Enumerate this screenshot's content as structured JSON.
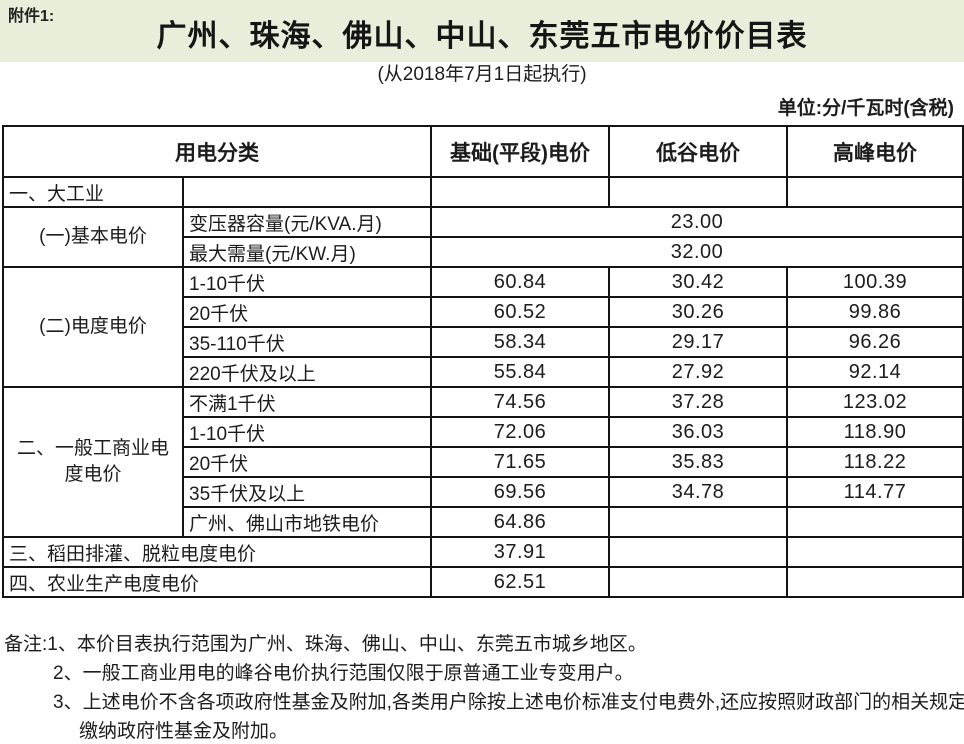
{
  "page": {
    "attachment_label": "附件1:",
    "title": "广州、珠海、佛山、中山、东莞五市电价价目表",
    "subtitle": "(从2018年7月1日起执行)",
    "unit_note": "单位:分/千瓦时(含税)",
    "accent_color": "#e8eeda",
    "border_color": "#141414"
  },
  "table": {
    "columns": [
      "用电分类",
      "基础(平段)电价",
      "低谷电价",
      "高峰电价"
    ],
    "rows": [
      {
        "header": true,
        "cells": [
          {
            "t": "用电分类",
            "c": 2
          },
          {
            "t": "基础(平段)电价"
          },
          {
            "t": "低谷电价"
          },
          {
            "t": "高峰电价"
          }
        ]
      },
      {
        "cells": [
          {
            "t": "一、大工业",
            "cls": "left"
          },
          {
            "t": ""
          },
          {
            "t": ""
          },
          {
            "t": ""
          },
          {
            "t": ""
          }
        ]
      },
      {
        "cells": [
          {
            "t": "(一)基本电价",
            "r": 2,
            "cls": "cat"
          },
          {
            "t": "变压器容量(元/KVA.月)",
            "cls": "left"
          },
          {
            "t": "23.00",
            "c": 3,
            "cls": "num"
          }
        ]
      },
      {
        "cells": [
          {
            "t": "最大需量(元/KW.月)",
            "cls": "left"
          },
          {
            "t": "32.00",
            "c": 3,
            "cls": "num"
          }
        ]
      },
      {
        "cells": [
          {
            "t": "(二)电度电价",
            "r": 4,
            "cls": "cat"
          },
          {
            "t": "1-10千伏",
            "cls": "left"
          },
          {
            "t": "60.84",
            "cls": "num"
          },
          {
            "t": "30.42",
            "cls": "num"
          },
          {
            "t": "100.39",
            "cls": "num"
          }
        ]
      },
      {
        "cells": [
          {
            "t": "20千伏",
            "cls": "left"
          },
          {
            "t": "60.52",
            "cls": "num"
          },
          {
            "t": "30.26",
            "cls": "num"
          },
          {
            "t": "99.86",
            "cls": "num"
          }
        ]
      },
      {
        "cells": [
          {
            "t": "35-110千伏",
            "cls": "left"
          },
          {
            "t": "58.34",
            "cls": "num"
          },
          {
            "t": "29.17",
            "cls": "num"
          },
          {
            "t": "96.26",
            "cls": "num"
          }
        ]
      },
      {
        "cells": [
          {
            "t": "220千伏及以上",
            "cls": "left"
          },
          {
            "t": "55.84",
            "cls": "num"
          },
          {
            "t": "27.92",
            "cls": "num"
          },
          {
            "t": "92.14",
            "cls": "num"
          }
        ]
      },
      {
        "cells": [
          {
            "t": "二、一般工商业电\n度电价",
            "r": 5,
            "cls": "cat"
          },
          {
            "t": "不满1千伏",
            "cls": "left"
          },
          {
            "t": "74.56",
            "cls": "num"
          },
          {
            "t": "37.28",
            "cls": "num"
          },
          {
            "t": "123.02",
            "cls": "num"
          }
        ]
      },
      {
        "cells": [
          {
            "t": "1-10千伏",
            "cls": "left"
          },
          {
            "t": "72.06",
            "cls": "num"
          },
          {
            "t": "36.03",
            "cls": "num"
          },
          {
            "t": "118.90",
            "cls": "num"
          }
        ]
      },
      {
        "cells": [
          {
            "t": "20千伏",
            "cls": "left"
          },
          {
            "t": "71.65",
            "cls": "num"
          },
          {
            "t": "35.83",
            "cls": "num"
          },
          {
            "t": "118.22",
            "cls": "num"
          }
        ]
      },
      {
        "cells": [
          {
            "t": "35千伏及以上",
            "cls": "left"
          },
          {
            "t": "69.56",
            "cls": "num"
          },
          {
            "t": "34.78",
            "cls": "num"
          },
          {
            "t": "114.77",
            "cls": "num"
          }
        ]
      },
      {
        "cells": [
          {
            "t": "广州、佛山市地铁电价",
            "cls": "left"
          },
          {
            "t": "64.86",
            "cls": "num"
          },
          {
            "t": ""
          },
          {
            "t": ""
          }
        ]
      },
      {
        "cells": [
          {
            "t": "三、稻田排灌、脱粒电度电价",
            "c": 2,
            "cls": "left"
          },
          {
            "t": "37.91",
            "cls": "num"
          },
          {
            "t": ""
          },
          {
            "t": ""
          }
        ]
      },
      {
        "cells": [
          {
            "t": "四、农业生产电度电价",
            "c": 2,
            "cls": "left"
          },
          {
            "t": "62.51",
            "cls": "num"
          },
          {
            "t": ""
          },
          {
            "t": ""
          }
        ]
      }
    ]
  },
  "notes": {
    "lines": [
      "备注:1、本价目表执行范围为广州、珠海、佛山、中山、东莞五市城乡地区。",
      "2、一般工商业用电的峰谷电价执行范围仅限于原普通工业专变用户。",
      "3、上述电价不含各项政府性基金及附加,各类用户除按上述电价标准支付电费外,还应按照财政部门的相关规定",
      "缴纳政府性基金及附加。"
    ]
  }
}
